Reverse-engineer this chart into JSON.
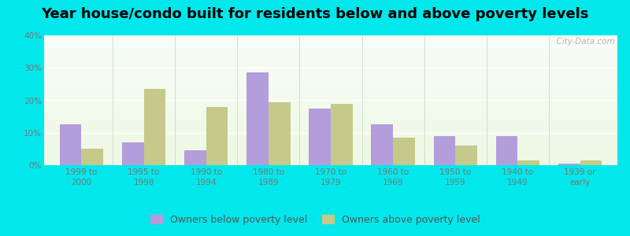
{
  "title": "Year house/condo built for residents below and above poverty levels",
  "categories": [
    "1999 to\n2000",
    "1995 to\n1998",
    "1990 to\n1994",
    "1980 to\n1989",
    "1970 to\n1979",
    "1960 to\n1969",
    "1950 to\n1959",
    "1940 to\n1949",
    "1939 or\nearly"
  ],
  "below_poverty": [
    12.5,
    7.0,
    4.5,
    28.5,
    17.5,
    12.5,
    9.0,
    9.0,
    0.5
  ],
  "above_poverty": [
    5.0,
    23.5,
    18.0,
    19.5,
    19.0,
    8.5,
    6.0,
    1.5,
    1.5
  ],
  "below_color": "#b39ddb",
  "above_color": "#c5c98a",
  "below_label": "Owners below poverty level",
  "above_label": "Owners above poverty level",
  "ylim": [
    0,
    40
  ],
  "yticks": [
    0,
    10,
    20,
    30,
    40
  ],
  "background_outer": "#00e8ec",
  "title_fontsize": 13,
  "tick_fontsize": 7.5,
  "legend_fontsize": 9,
  "bar_width": 0.35,
  "watermark": "  City-Data.com"
}
